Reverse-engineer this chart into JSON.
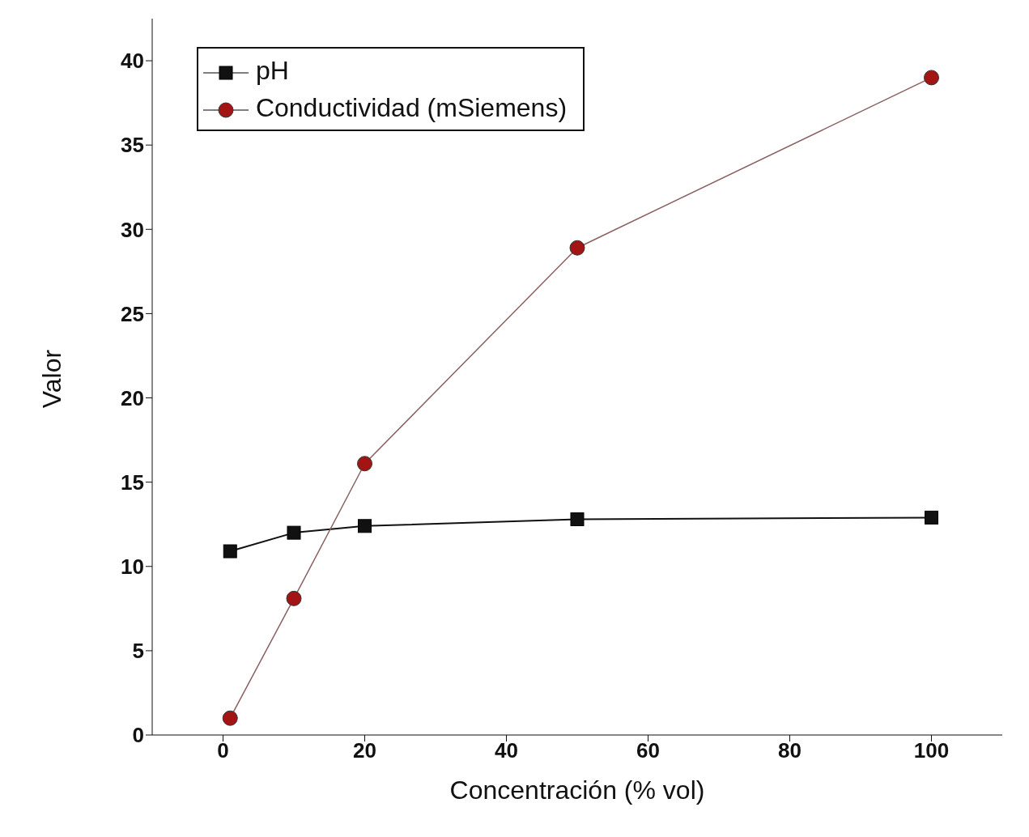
{
  "chart_data": {
    "type": "line",
    "xlabel": "Concentración (% vol)",
    "ylabel": "Valor",
    "x": [
      1,
      10,
      20,
      50,
      100
    ],
    "series": [
      {
        "name": "pH",
        "color": "#111111",
        "marker": "square",
        "values": [
          10.9,
          12.0,
          12.4,
          12.8,
          12.9
        ]
      },
      {
        "name": "Conductividad (mSiemens)",
        "color": "#a31515",
        "marker": "circle",
        "values": [
          1.0,
          8.1,
          16.1,
          28.9,
          39.0
        ]
      }
    ],
    "xlim": [
      -10,
      110
    ],
    "xticks": [
      0,
      20,
      40,
      60,
      80,
      100
    ],
    "ylim": [
      0,
      42.5
    ],
    "yticks": [
      0,
      5,
      10,
      15,
      20,
      25,
      30,
      35,
      40
    ],
    "grid": false,
    "legend": "top left"
  }
}
